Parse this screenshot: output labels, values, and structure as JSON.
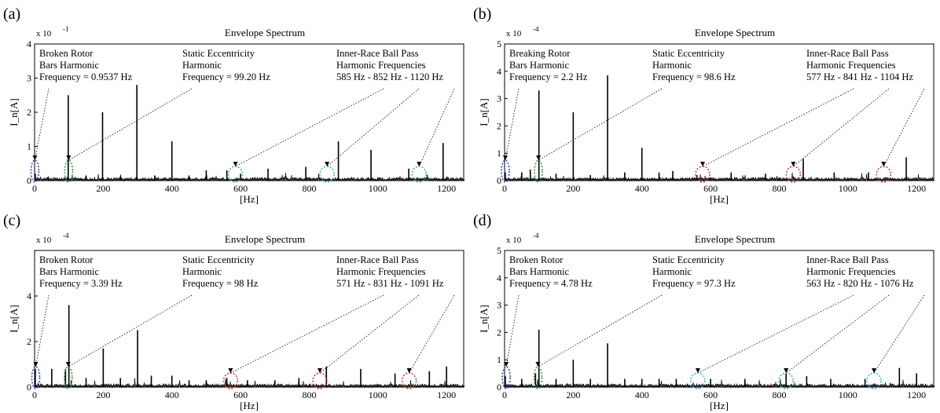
{
  "chart_data": [
    {
      "type": "line",
      "panel_label": "(a)",
      "title": "Envelope Spectrum",
      "xlabel": "[Hz]",
      "ylabel": "I_n[A]",
      "scale_exponent": "x 10",
      "scale_power": "-1",
      "xlim": [
        0,
        1250
      ],
      "ylim": [
        0,
        4
      ],
      "x_ticks": [
        "0",
        "200",
        "400",
        "600",
        "800",
        "1000",
        "1200"
      ],
      "y_ticks": [
        "0",
        "1",
        "2",
        "3",
        "4"
      ],
      "grid": false,
      "peaks": [
        {
          "x": 2,
          "y": 0.2
        },
        {
          "x": 40,
          "y": 0.12
        },
        {
          "x": 98,
          "y": 2.5
        },
        {
          "x": 150,
          "y": 0.15
        },
        {
          "x": 198,
          "y": 2.0
        },
        {
          "x": 250,
          "y": 0.12
        },
        {
          "x": 298,
          "y": 2.8
        },
        {
          "x": 350,
          "y": 0.15
        },
        {
          "x": 400,
          "y": 1.15
        },
        {
          "x": 450,
          "y": 0.15
        },
        {
          "x": 500,
          "y": 0.3
        },
        {
          "x": 560,
          "y": 0.3
        },
        {
          "x": 600,
          "y": 0.2
        },
        {
          "x": 680,
          "y": 0.35
        },
        {
          "x": 790,
          "y": 0.4
        },
        {
          "x": 885,
          "y": 1.15
        },
        {
          "x": 980,
          "y": 0.9
        },
        {
          "x": 1090,
          "y": 0.35
        },
        {
          "x": 1190,
          "y": 1.1
        }
      ],
      "annotations": [
        {
          "lines": [
            "Broken Rotor",
            "Bars Harmonic",
            "Frequency = 0.9537 Hz"
          ],
          "target_x": 0.95,
          "marker_color": "#2a3bd4"
        },
        {
          "lines": [
            "Static Eccentricity",
            "Harmonic",
            "Frequency = 99.20 Hz"
          ],
          "target_x": 99.2,
          "marker_color": "#2a9a3a"
        },
        {
          "lines": [
            "Inner-Race Ball Pass",
            "Harmonic Frequencies",
            "585 Hz - 852 Hz - 1120 Hz"
          ],
          "targets": [
            585,
            852,
            1120
          ],
          "marker_color": "#2ab8c8"
        }
      ]
    },
    {
      "type": "line",
      "panel_label": "(b)",
      "title": "Envelope Spectrum",
      "xlabel": "[Hz]",
      "ylabel": "I_n[A]",
      "scale_exponent": "x 10",
      "scale_power": "-4",
      "xlim": [
        0,
        1250
      ],
      "ylim": [
        0,
        5
      ],
      "x_ticks": [
        "0",
        "200",
        "400",
        "600",
        "800",
        "1000",
        "1200"
      ],
      "y_ticks": [
        "0",
        "1",
        "2",
        "3",
        "4",
        "5"
      ],
      "grid": false,
      "peaks": [
        {
          "x": 2,
          "y": 0.3
        },
        {
          "x": 50,
          "y": 0.3
        },
        {
          "x": 75,
          "y": 0.4
        },
        {
          "x": 100,
          "y": 3.3
        },
        {
          "x": 150,
          "y": 0.25
        },
        {
          "x": 200,
          "y": 2.5
        },
        {
          "x": 250,
          "y": 0.2
        },
        {
          "x": 300,
          "y": 3.85
        },
        {
          "x": 350,
          "y": 0.3
        },
        {
          "x": 400,
          "y": 1.2
        },
        {
          "x": 450,
          "y": 0.3
        },
        {
          "x": 490,
          "y": 0.35
        },
        {
          "x": 560,
          "y": 0.2
        },
        {
          "x": 660,
          "y": 0.3
        },
        {
          "x": 760,
          "y": 0.25
        },
        {
          "x": 870,
          "y": 0.8
        },
        {
          "x": 960,
          "y": 0.3
        },
        {
          "x": 1060,
          "y": 0.3
        },
        {
          "x": 1170,
          "y": 0.85
        }
      ],
      "annotations": [
        {
          "lines": [
            "Breaking Rotor",
            "Bars Harmonic",
            "Frequency = 2.2 Hz"
          ],
          "target_x": 2.2,
          "marker_color": "#2a3bd4"
        },
        {
          "lines": [
            "Static Eccentricity",
            "Harmonic",
            "Frequency = 98.6 Hz"
          ],
          "target_x": 98.6,
          "marker_color": "#2a9a3a"
        },
        {
          "lines": [
            "Inner-Race Ball Pass",
            "Harmonic Frequencies",
            "577 Hz - 841 Hz - 1104 Hz"
          ],
          "targets": [
            577,
            841,
            1104
          ],
          "marker_color": "#e03030"
        }
      ]
    },
    {
      "type": "line",
      "panel_label": "(c)",
      "title": "Envelope Spectrum",
      "xlabel": "[Hz]",
      "ylabel": "I_n[A]",
      "scale_exponent": "x 10",
      "scale_power": "-4",
      "xlim": [
        0,
        1250
      ],
      "ylim": [
        0,
        6
      ],
      "x_ticks": [
        "0",
        "200",
        "400",
        "600",
        "800",
        "1000",
        "1200"
      ],
      "y_ticks": [
        "0",
        "2",
        "4"
      ],
      "grid": false,
      "peaks": [
        {
          "x": 2,
          "y": 0.8
        },
        {
          "x": 50,
          "y": 0.8
        },
        {
          "x": 90,
          "y": 0.8
        },
        {
          "x": 100,
          "y": 3.6
        },
        {
          "x": 150,
          "y": 0.4
        },
        {
          "x": 200,
          "y": 1.7
        },
        {
          "x": 250,
          "y": 0.4
        },
        {
          "x": 300,
          "y": 2.5
        },
        {
          "x": 340,
          "y": 0.5
        },
        {
          "x": 400,
          "y": 0.5
        },
        {
          "x": 450,
          "y": 0.3
        },
        {
          "x": 500,
          "y": 0.3
        },
        {
          "x": 560,
          "y": 0.4
        },
        {
          "x": 620,
          "y": 0.3
        },
        {
          "x": 700,
          "y": 0.3
        },
        {
          "x": 770,
          "y": 0.4
        },
        {
          "x": 850,
          "y": 0.9
        },
        {
          "x": 950,
          "y": 0.8
        },
        {
          "x": 1050,
          "y": 0.6
        },
        {
          "x": 1150,
          "y": 0.7
        },
        {
          "x": 1200,
          "y": 0.9
        }
      ],
      "annotations": [
        {
          "lines": [
            "Broken Rotor",
            "Bars Harmonic",
            "Frequency = 3.39 Hz"
          ],
          "target_x": 3.39,
          "marker_color": "#2a3bd4"
        },
        {
          "lines": [
            "Static Eccentricity",
            "Harmonic",
            "Frequency = 98 Hz"
          ],
          "target_x": 98,
          "marker_color": "#2a9a3a"
        },
        {
          "lines": [
            "Inner-Race Ball Pass",
            "Harmonic Frequencies",
            "571 Hz - 831 Hz - 1091 Hz"
          ],
          "targets": [
            571,
            831,
            1091
          ],
          "marker_color": "#e03030"
        }
      ]
    },
    {
      "type": "line",
      "panel_label": "(d)",
      "title": "Envelope Spectrum",
      "xlabel": "[Hz]",
      "ylabel": "I_n[A]",
      "scale_exponent": "x 10",
      "scale_power": "-4",
      "xlim": [
        0,
        1250
      ],
      "ylim": [
        0,
        5
      ],
      "x_ticks": [
        "0",
        "200",
        "400",
        "600",
        "800",
        "1000",
        "1200"
      ],
      "y_ticks": [
        "0",
        "1",
        "2",
        "3",
        "4",
        "5"
      ],
      "grid": false,
      "peaks": [
        {
          "x": 2,
          "y": 0.4
        },
        {
          "x": 50,
          "y": 0.3
        },
        {
          "x": 90,
          "y": 0.5
        },
        {
          "x": 100,
          "y": 2.1
        },
        {
          "x": 150,
          "y": 0.3
        },
        {
          "x": 200,
          "y": 1.0
        },
        {
          "x": 250,
          "y": 0.3
        },
        {
          "x": 300,
          "y": 1.6
        },
        {
          "x": 350,
          "y": 0.3
        },
        {
          "x": 400,
          "y": 0.3
        },
        {
          "x": 450,
          "y": 0.3
        },
        {
          "x": 500,
          "y": 0.3
        },
        {
          "x": 600,
          "y": 0.3
        },
        {
          "x": 700,
          "y": 0.3
        },
        {
          "x": 820,
          "y": 0.5
        },
        {
          "x": 880,
          "y": 0.4
        },
        {
          "x": 950,
          "y": 0.3
        },
        {
          "x": 1050,
          "y": 0.3
        },
        {
          "x": 1150,
          "y": 0.7
        },
        {
          "x": 1200,
          "y": 0.5
        }
      ],
      "annotations": [
        {
          "lines": [
            "Broken Rotor",
            "Bars Harmonic",
            "Frequency = 4.78 Hz"
          ],
          "target_x": 4.78,
          "marker_color": "#2a3bd4"
        },
        {
          "lines": [
            "Static Eccentricity",
            "Harmonic",
            "Frequency = 97.3 Hz"
          ],
          "target_x": 97.3,
          "marker_color": "#2a9a3a"
        },
        {
          "lines": [
            "Inner-Race Ball Pass",
            "Harmonic Frequencies",
            "563 Hz - 820 Hz - 1076 Hz"
          ],
          "targets": [
            563,
            820,
            1076
          ],
          "marker_color": "#2ab8c8"
        }
      ]
    }
  ]
}
